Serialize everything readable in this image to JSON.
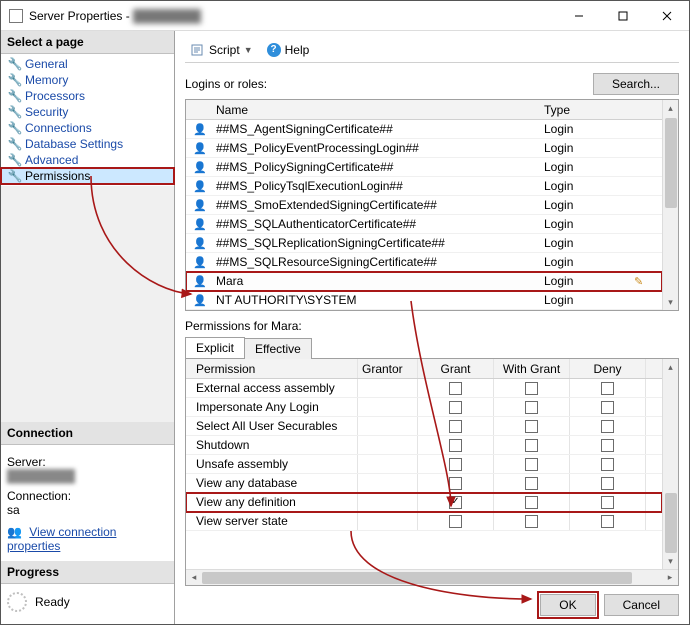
{
  "window": {
    "title": "Server Properties -",
    "title_blur": "████████"
  },
  "sidebar": {
    "select_page_header": "Select a page",
    "pages": [
      {
        "label": "General"
      },
      {
        "label": "Memory"
      },
      {
        "label": "Processors"
      },
      {
        "label": "Security"
      },
      {
        "label": "Connections"
      },
      {
        "label": "Database Settings"
      },
      {
        "label": "Advanced"
      },
      {
        "label": "Permissions",
        "selected": true
      }
    ],
    "connection_header": "Connection",
    "server_label": "Server:",
    "server_value": "████████",
    "connection_label": "Connection:",
    "connection_value": "sa",
    "view_conn_props": "View connection properties",
    "progress_header": "Progress",
    "progress_status": "Ready"
  },
  "toolbar": {
    "script_label": "Script",
    "help_label": "Help"
  },
  "logins": {
    "label": "Logins or roles:",
    "search_button": "Search...",
    "columns": {
      "name": "Name",
      "type": "Type"
    },
    "rows": [
      {
        "name": "##MS_AgentSigningCertificate##",
        "type": "Login"
      },
      {
        "name": "##MS_PolicyEventProcessingLogin##",
        "type": "Login"
      },
      {
        "name": "##MS_PolicySigningCertificate##",
        "type": "Login"
      },
      {
        "name": "##MS_PolicyTsqlExecutionLogin##",
        "type": "Login"
      },
      {
        "name": "##MS_SmoExtendedSigningCertificate##",
        "type": "Login"
      },
      {
        "name": "##MS_SQLAuthenticatorCertificate##",
        "type": "Login"
      },
      {
        "name": "##MS_SQLReplicationSigningCertificate##",
        "type": "Login"
      },
      {
        "name": "##MS_SQLResourceSigningCertificate##",
        "type": "Login"
      },
      {
        "name": "Mara",
        "type": "Login",
        "selected": true
      },
      {
        "name": "NT AUTHORITY\\SYSTEM",
        "type": "Login"
      }
    ]
  },
  "permissions": {
    "label_prefix": "Permissions for ",
    "subject": "Mara",
    "label_suffix": ":",
    "tabs": {
      "explicit": "Explicit",
      "effective": "Effective"
    },
    "columns": {
      "permission": "Permission",
      "grantor": "Grantor",
      "grant": "Grant",
      "with_grant": "With Grant",
      "deny": "Deny"
    },
    "rows": [
      {
        "name": "External access assembly",
        "grant": false,
        "with_grant": false,
        "deny": false
      },
      {
        "name": "Impersonate Any Login",
        "grant": false,
        "with_grant": false,
        "deny": false
      },
      {
        "name": "Select All User Securables",
        "grant": false,
        "with_grant": false,
        "deny": false
      },
      {
        "name": "Shutdown",
        "grant": false,
        "with_grant": false,
        "deny": false
      },
      {
        "name": "Unsafe assembly",
        "grant": false,
        "with_grant": false,
        "deny": false
      },
      {
        "name": "View any database",
        "grant": false,
        "with_grant": false,
        "deny": false
      },
      {
        "name": "View any definition",
        "grant": true,
        "with_grant": false,
        "deny": false,
        "highlight": true
      },
      {
        "name": "View server state",
        "grant": false,
        "with_grant": false,
        "deny": false
      }
    ]
  },
  "footer": {
    "ok": "OK",
    "cancel": "Cancel"
  },
  "annotations": {
    "arrow_color": "#a81818",
    "highlight_color": "#a81818"
  }
}
